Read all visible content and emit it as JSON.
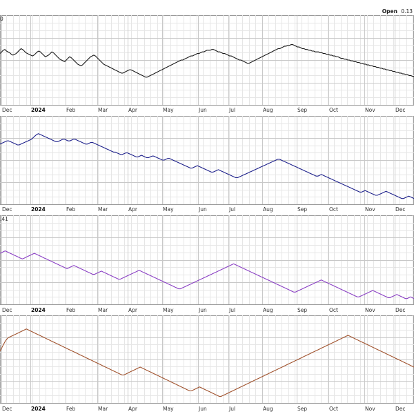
{
  "header": {
    "open_label": "Open",
    "open_value": "0.13"
  },
  "chart_data": [
    {
      "type": "line",
      "title": "",
      "corner_label": "0",
      "color": "#1a1a1a",
      "x_ticks": [
        "Dec",
        "2024",
        "Feb",
        "Mar",
        "Apr",
        "May",
        "Jun",
        "Jul",
        "Aug",
        "Sep",
        "Oct",
        "Nov",
        "Dec"
      ],
      "ylim": [
        0,
        100
      ],
      "series": [
        {
          "values": [
            58,
            60,
            62,
            63,
            61,
            60,
            59,
            57,
            56,
            57,
            58,
            60,
            62,
            64,
            63,
            61,
            59,
            58,
            57,
            56,
            55,
            56,
            58,
            60,
            61,
            60,
            58,
            56,
            54,
            55,
            56,
            58,
            60,
            59,
            57,
            55,
            53,
            51,
            50,
            49,
            48,
            50,
            52,
            54,
            53,
            51,
            49,
            47,
            45,
            44,
            43,
            44,
            46,
            48,
            50,
            52,
            54,
            55,
            56,
            55,
            53,
            51,
            49,
            47,
            45,
            44,
            43,
            42,
            41,
            40,
            39,
            38,
            37,
            36,
            35,
            34,
            34,
            35,
            36,
            37,
            38,
            38,
            37,
            36,
            35,
            34,
            33,
            32,
            31,
            30,
            29,
            29,
            30,
            31,
            32,
            33,
            34,
            35,
            36,
            37,
            38,
            39,
            40,
            41,
            42,
            43,
            44,
            45,
            46,
            47,
            48,
            49,
            50,
            50,
            51,
            52,
            53,
            54,
            55,
            55,
            56,
            57,
            58,
            58,
            59,
            60,
            60,
            61,
            62,
            62,
            62,
            63,
            63,
            62,
            61,
            60,
            60,
            59,
            58,
            58,
            57,
            56,
            55,
            55,
            54,
            53,
            52,
            51,
            50,
            50,
            49,
            48,
            47,
            46,
            46,
            47,
            48,
            49,
            50,
            51,
            52,
            53,
            54,
            55,
            56,
            57,
            58,
            59,
            60,
            61,
            62,
            63,
            64,
            64,
            65,
            66,
            67,
            67,
            68,
            68,
            69,
            69,
            68,
            67,
            66,
            66,
            65,
            64,
            64,
            63,
            63,
            62,
            62,
            61,
            61,
            60,
            60,
            60,
            59,
            59,
            58,
            58,
            57,
            57,
            56,
            56,
            55,
            55,
            54,
            54,
            53,
            52,
            52,
            51,
            51,
            50,
            50,
            49,
            49,
            48,
            48,
            47,
            47,
            46,
            46,
            45,
            45,
            44,
            44,
            43,
            43,
            42,
            42,
            41,
            41,
            40,
            40,
            39,
            39,
            38,
            38,
            37,
            37,
            36,
            36,
            35,
            35,
            34,
            34,
            33,
            33,
            32,
            32,
            31,
            31,
            30,
            30
          ]
        }
      ]
    },
    {
      "type": "line",
      "title": "",
      "corner_label": "",
      "color": "#1c1f8a",
      "x_ticks": [
        "Dec",
        "2024",
        "Feb",
        "Mar",
        "Apr",
        "May",
        "Jun",
        "Jul",
        "Aug",
        "Sep",
        "Oct",
        "Nov",
        "Dec"
      ],
      "ylim": [
        0,
        100
      ],
      "series": [
        {
          "values": [
            70,
            71,
            72,
            73,
            74,
            74,
            73,
            72,
            71,
            70,
            69,
            69,
            70,
            71,
            72,
            73,
            74,
            75,
            76,
            78,
            80,
            82,
            83,
            82,
            81,
            80,
            79,
            78,
            77,
            76,
            75,
            74,
            73,
            73,
            74,
            75,
            76,
            76,
            75,
            74,
            74,
            75,
            76,
            76,
            75,
            74,
            73,
            72,
            71,
            70,
            70,
            71,
            72,
            72,
            71,
            70,
            69,
            68,
            67,
            66,
            65,
            64,
            63,
            62,
            61,
            60,
            60,
            59,
            58,
            57,
            57,
            58,
            59,
            59,
            58,
            57,
            56,
            55,
            54,
            54,
            55,
            56,
            55,
            54,
            53,
            53,
            54,
            55,
            55,
            54,
            53,
            52,
            51,
            50,
            50,
            51,
            52,
            52,
            51,
            50,
            49,
            48,
            47,
            46,
            45,
            44,
            43,
            42,
            41,
            40,
            40,
            41,
            42,
            43,
            42,
            41,
            40,
            39,
            38,
            37,
            36,
            35,
            35,
            36,
            37,
            38,
            37,
            36,
            35,
            34,
            33,
            32,
            31,
            30,
            29,
            28,
            28,
            29,
            30,
            31,
            32,
            33,
            34,
            35,
            36,
            37,
            38,
            39,
            40,
            41,
            42,
            43,
            44,
            45,
            46,
            47,
            48,
            49,
            50,
            51,
            51,
            50,
            49,
            48,
            47,
            46,
            45,
            44,
            43,
            42,
            41,
            40,
            39,
            38,
            37,
            36,
            35,
            34,
            33,
            32,
            31,
            30,
            30,
            31,
            32,
            31,
            30,
            29,
            28,
            27,
            26,
            25,
            24,
            23,
            22,
            21,
            20,
            19,
            18,
            17,
            16,
            15,
            14,
            13,
            12,
            11,
            10,
            10,
            11,
            12,
            11,
            10,
            9,
            8,
            7,
            6,
            6,
            7,
            8,
            9,
            10,
            11,
            10,
            9,
            8,
            7,
            6,
            5,
            4,
            3,
            2,
            2,
            3,
            4,
            5,
            4,
            3,
            2
          ]
        }
      ]
    },
    {
      "type": "line",
      "title": "",
      "corner_label": ".41",
      "color": "#8a3fc4",
      "x_ticks": [
        "Dec",
        "2024",
        "Feb",
        "Mar",
        "Apr",
        "May",
        "Jun",
        "Jul",
        "Aug",
        "Sep",
        "Oct",
        "Nov",
        "Dec"
      ],
      "ylim": [
        0,
        100
      ],
      "series": [
        {
          "values": [
            58,
            59,
            60,
            61,
            60,
            59,
            58,
            57,
            56,
            55,
            54,
            53,
            52,
            51,
            52,
            53,
            54,
            55,
            56,
            57,
            58,
            57,
            56,
            55,
            54,
            53,
            52,
            51,
            50,
            49,
            48,
            47,
            46,
            45,
            44,
            43,
            42,
            41,
            40,
            39,
            40,
            41,
            42,
            43,
            42,
            41,
            40,
            39,
            38,
            37,
            36,
            35,
            34,
            33,
            32,
            32,
            33,
            34,
            35,
            36,
            35,
            34,
            33,
            32,
            31,
            30,
            29,
            28,
            27,
            26,
            26,
            27,
            28,
            29,
            30,
            31,
            32,
            33,
            34,
            35,
            36,
            37,
            36,
            35,
            34,
            33,
            32,
            31,
            30,
            29,
            28,
            27,
            26,
            25,
            24,
            23,
            22,
            21,
            20,
            19,
            18,
            17,
            16,
            15,
            14,
            14,
            15,
            16,
            17,
            18,
            19,
            20,
            21,
            22,
            23,
            24,
            25,
            26,
            27,
            28,
            29,
            30,
            31,
            32,
            33,
            34,
            35,
            36,
            37,
            38,
            39,
            40,
            41,
            42,
            43,
            44,
            45,
            44,
            43,
            42,
            41,
            40,
            39,
            38,
            37,
            36,
            35,
            34,
            33,
            32,
            31,
            30,
            29,
            28,
            27,
            26,
            25,
            24,
            23,
            22,
            21,
            20,
            19,
            18,
            17,
            16,
            15,
            14,
            13,
            12,
            11,
            10,
            10,
            11,
            12,
            13,
            14,
            15,
            16,
            17,
            18,
            19,
            20,
            21,
            22,
            23,
            24,
            25,
            24,
            23,
            22,
            21,
            20,
            19,
            18,
            17,
            16,
            15,
            14,
            13,
            12,
            11,
            10,
            9,
            8,
            7,
            6,
            5,
            4,
            4,
            5,
            6,
            7,
            8,
            9,
            10,
            11,
            12,
            11,
            10,
            9,
            8,
            7,
            6,
            5,
            4,
            3,
            3,
            4,
            5,
            6,
            7,
            6,
            5,
            4,
            3,
            2,
            2,
            3,
            4,
            3,
            2
          ]
        }
      ]
    },
    {
      "type": "line",
      "title": "",
      "corner_label": "",
      "color": "#a0522d",
      "x_ticks": [
        "Dec",
        "2024",
        "Feb",
        "Mar",
        "Apr",
        "May",
        "Jun",
        "Jul",
        "Aug",
        "Sep",
        "Oct",
        "Nov",
        "Dec"
      ],
      "ylim": [
        0,
        100
      ],
      "series": [
        {
          "values": [
            60,
            64,
            68,
            72,
            75,
            77,
            78,
            79,
            80,
            81,
            82,
            83,
            84,
            85,
            86,
            87,
            88,
            87,
            86,
            85,
            84,
            83,
            82,
            81,
            80,
            79,
            78,
            77,
            76,
            75,
            74,
            73,
            72,
            71,
            70,
            69,
            68,
            67,
            66,
            65,
            64,
            63,
            62,
            61,
            60,
            59,
            58,
            57,
            56,
            55,
            54,
            53,
            52,
            51,
            50,
            49,
            48,
            47,
            46,
            45,
            44,
            43,
            42,
            41,
            40,
            39,
            38,
            37,
            36,
            35,
            34,
            33,
            32,
            31,
            30,
            30,
            31,
            32,
            33,
            34,
            35,
            36,
            37,
            38,
            39,
            40,
            39,
            38,
            37,
            36,
            35,
            34,
            33,
            32,
            31,
            30,
            29,
            28,
            27,
            26,
            25,
            24,
            23,
            22,
            21,
            20,
            19,
            18,
            17,
            16,
            15,
            14,
            13,
            12,
            11,
            10,
            10,
            11,
            12,
            13,
            14,
            15,
            14,
            13,
            12,
            11,
            10,
            9,
            8,
            7,
            6,
            5,
            4,
            3,
            3,
            4,
            5,
            6,
            7,
            8,
            9,
            10,
            11,
            12,
            13,
            14,
            15,
            16,
            17,
            18,
            19,
            20,
            21,
            22,
            23,
            24,
            25,
            26,
            27,
            28,
            29,
            30,
            31,
            32,
            33,
            34,
            35,
            36,
            37,
            38,
            39,
            40,
            41,
            42,
            43,
            44,
            45,
            46,
            47,
            48,
            49,
            50,
            51,
            52,
            53,
            54,
            55,
            56,
            57,
            58,
            59,
            60,
            61,
            62,
            63,
            64,
            65,
            66,
            67,
            68,
            69,
            70,
            71,
            72,
            73,
            74,
            75,
            76,
            77,
            78,
            79,
            80,
            79,
            78,
            77,
            76,
            75,
            74,
            73,
            72,
            71,
            70,
            69,
            68,
            67,
            66,
            65,
            64,
            63,
            62,
            61,
            60,
            59,
            58,
            57,
            56,
            55,
            54,
            53,
            52,
            51,
            50,
            49,
            48,
            47,
            46,
            45,
            44,
            43,
            42,
            41,
            40
          ]
        }
      ]
    }
  ]
}
